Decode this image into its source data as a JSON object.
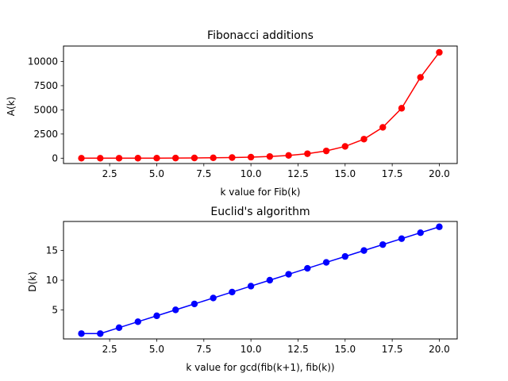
{
  "chart_data": [
    {
      "type": "line",
      "title": "Fibonacci additions",
      "xlabel": "k value for Fib(k)",
      "ylabel": "A(k)",
      "xlim": [
        0.05,
        20.95
      ],
      "ylim": [
        -550,
        11600
      ],
      "xticks": [
        2.5,
        5.0,
        7.5,
        10.0,
        12.5,
        15.0,
        17.5,
        20.0
      ],
      "xtick_labels": [
        "2.5",
        "5.0",
        "7.5",
        "10.0",
        "12.5",
        "15.0",
        "17.5",
        "20.0"
      ],
      "yticks": [
        0,
        2500,
        5000,
        7500,
        10000
      ],
      "ytick_labels": [
        "0",
        "2500",
        "5000",
        "7500",
        "10000"
      ],
      "color": "#ff0000",
      "marker": "circle",
      "grid": false,
      "series": [
        {
          "x": [
            1,
            2,
            3,
            4,
            5,
            6,
            7,
            8,
            9,
            10,
            11,
            12,
            13,
            14,
            15,
            16,
            17,
            18,
            19,
            20
          ],
          "values": [
            0,
            0,
            2,
            4,
            8,
            14,
            24,
            40,
            66,
            108,
            176,
            286,
            464,
            752,
            1218,
            1972,
            3192,
            5166,
            8360,
            10945
          ]
        }
      ]
    },
    {
      "type": "line",
      "title": "Euclid's algorithm",
      "xlabel": "k value for gcd(fib(k+1), fib(k))",
      "ylabel": "D(k)",
      "xlim": [
        0.05,
        20.95
      ],
      "ylim": [
        0.1,
        19.9
      ],
      "xticks": [
        2.5,
        5.0,
        7.5,
        10.0,
        12.5,
        15.0,
        17.5,
        20.0
      ],
      "xtick_labels": [
        "2.5",
        "5.0",
        "7.5",
        "10.0",
        "12.5",
        "15.0",
        "17.5",
        "20.0"
      ],
      "yticks": [
        5,
        10,
        15
      ],
      "ytick_labels": [
        "5",
        "10",
        "15"
      ],
      "color": "#0000ff",
      "marker": "circle",
      "grid": false,
      "series": [
        {
          "x": [
            1,
            2,
            3,
            4,
            5,
            6,
            7,
            8,
            9,
            10,
            11,
            12,
            13,
            14,
            15,
            16,
            17,
            18,
            19,
            20
          ],
          "values": [
            1,
            1,
            2,
            3,
            4,
            5,
            6,
            7,
            8,
            9,
            10,
            11,
            12,
            13,
            14,
            15,
            16,
            17,
            18,
            19
          ]
        }
      ]
    }
  ]
}
